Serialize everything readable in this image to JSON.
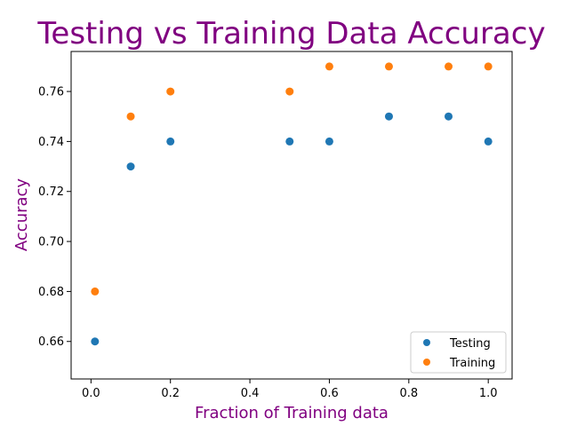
{
  "chart_data": {
    "type": "scatter",
    "title": "Testing vs Training Data Accuracy",
    "xlabel": "Fraction of Training data",
    "ylabel": "Accuracy",
    "xlim": [
      -0.05,
      1.06
    ],
    "ylim": [
      0.645,
      0.776
    ],
    "xticks": [
      0.0,
      0.2,
      0.4,
      0.6,
      0.8,
      1.0
    ],
    "xtick_labels": [
      "0.0",
      "0.2",
      "0.4",
      "0.6",
      "0.8",
      "1.0"
    ],
    "yticks": [
      0.66,
      0.68,
      0.7,
      0.72,
      0.74,
      0.76
    ],
    "ytick_labels": [
      "0.66",
      "0.68",
      "0.70",
      "0.72",
      "0.74",
      "0.76"
    ],
    "grid": false,
    "legend_position": "lower-right",
    "title_color": "#800080",
    "label_color": "#800080",
    "series": [
      {
        "name": "Testing",
        "color": "#1f77b4",
        "x": [
          0.01,
          0.1,
          0.2,
          0.5,
          0.6,
          0.75,
          0.9,
          1.0
        ],
        "y": [
          0.66,
          0.73,
          0.74,
          0.74,
          0.74,
          0.75,
          0.75,
          0.74
        ]
      },
      {
        "name": "Training",
        "color": "#ff7f0e",
        "x": [
          0.01,
          0.1,
          0.2,
          0.5,
          0.6,
          0.75,
          0.9,
          1.0
        ],
        "y": [
          0.68,
          0.75,
          0.76,
          0.76,
          0.77,
          0.77,
          0.77,
          0.77
        ]
      }
    ]
  }
}
